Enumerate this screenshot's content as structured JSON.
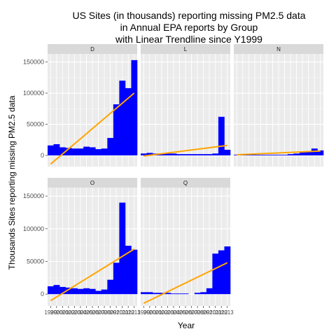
{
  "chart_data": {
    "type": "bar",
    "title_lines": [
      "US Sites (in thousands) reporting missing PM2.5 data",
      "in Annual EPA reports by Group",
      "with Linear Trendline since Y1999"
    ],
    "xlabel": "Year",
    "ylabel": "Thousands Sites reporting missing PM2.5 data",
    "x": [
      1999,
      2000,
      2001,
      2002,
      2003,
      2004,
      2005,
      2006,
      2007,
      2008,
      2009,
      2010,
      2011,
      2012,
      2013
    ],
    "ylim": [
      -18000,
      163000
    ],
    "yticks": [
      0,
      50000,
      100000,
      150000
    ],
    "ytick_labels": [
      "0",
      "50000",
      "100000",
      "150000"
    ],
    "x_tick_labels": [
      "1999",
      "2000",
      "2001",
      "2002",
      "2003",
      "2004",
      "2005",
      "2006",
      "2007",
      "2008",
      "2009",
      "2010",
      "2011",
      "2012",
      "2013"
    ],
    "bar_color": "#0000ff",
    "trend_color": "#ffa500",
    "panel_bg": "#ebebeb",
    "strip_bg": "#d9d9d9",
    "panels": [
      {
        "group": "D",
        "values": [
          16000,
          18000,
          13000,
          12000,
          11000,
          11000,
          14000,
          13000,
          10000,
          11000,
          28000,
          82000,
          120000,
          108000,
          153000
        ],
        "trend": [
          -14000,
          100000
        ]
      },
      {
        "group": "L",
        "values": [
          3000,
          4000,
          3000,
          3000,
          3000,
          3000,
          2000,
          2000,
          2000,
          2000,
          2000,
          2000,
          3000,
          62000,
          9000
        ],
        "trend": [
          -1000,
          16000
        ]
      },
      {
        "group": "N",
        "values": [
          1000,
          2000,
          1000,
          1000,
          1000,
          1000,
          1000,
          1000,
          1000,
          2000,
          3000,
          5000,
          6000,
          11000,
          8000
        ],
        "trend": [
          1000,
          7000
        ]
      },
      {
        "group": "O",
        "values": [
          12000,
          14000,
          11000,
          10000,
          9000,
          8000,
          9000,
          8000,
          5000,
          7000,
          22000,
          48000,
          140000,
          74000,
          68000
        ],
        "trend": [
          -10000,
          69000
        ]
      },
      {
        "group": "Q",
        "values": [
          3000,
          3000,
          2000,
          2000,
          2000,
          1000,
          1000,
          1000,
          0,
          2000,
          3000,
          9000,
          62000,
          67000,
          73000
        ],
        "trend": [
          -14000,
          48000
        ]
      }
    ]
  }
}
